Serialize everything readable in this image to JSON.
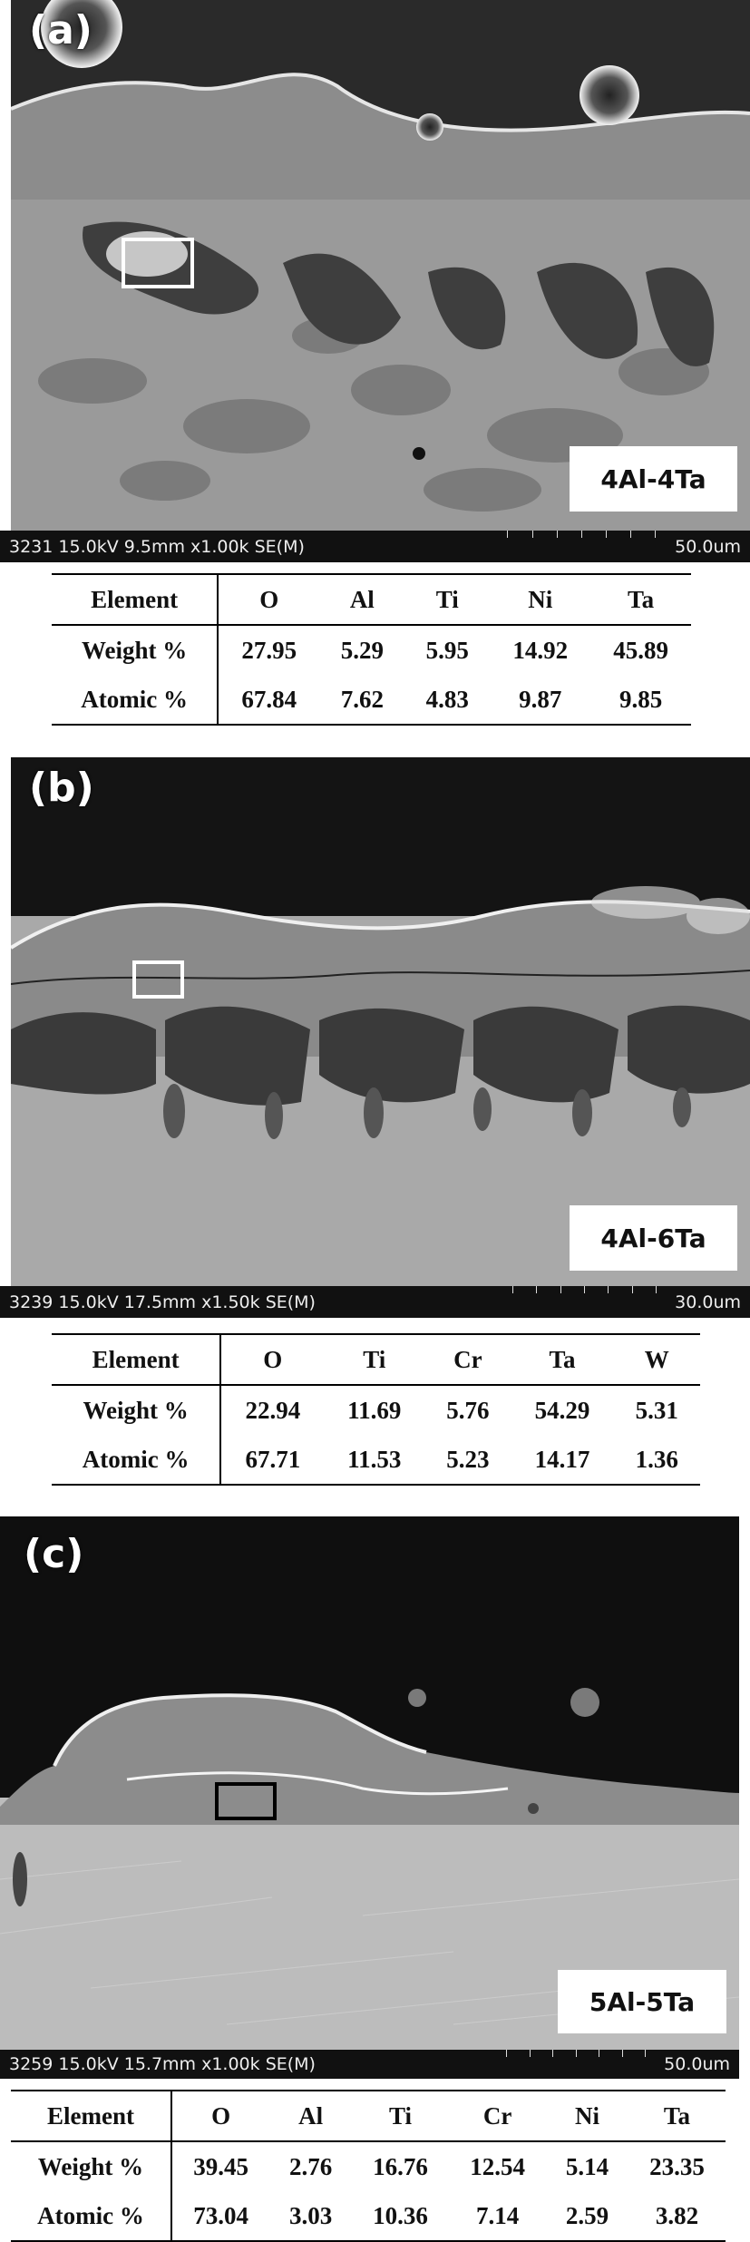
{
  "panels": [
    {
      "label": "(a)",
      "sample": "4Al-4Ta",
      "info": "3231 15.0kV 9.5mm x1.00k SE(M)",
      "scale": "50.0um",
      "marker_color": "#ffffff",
      "table": {
        "header": [
          "Element",
          "O",
          "Al",
          "Ti",
          "Ni",
          "Ta"
        ],
        "rows": [
          [
            "Weight %",
            "27.95",
            "5.29",
            "5.95",
            "14.92",
            "45.89"
          ],
          [
            "Atomic %",
            "67.84",
            "7.62",
            "4.83",
            "9.87",
            "9.85"
          ]
        ]
      }
    },
    {
      "label": "(b)",
      "sample": "4Al-6Ta",
      "info": "3239 15.0kV 17.5mm x1.50k SE(M)",
      "scale": "30.0um",
      "marker_color": "#ffffff",
      "table": {
        "header": [
          "Element",
          "O",
          "Ti",
          "Cr",
          "Ta",
          "W"
        ],
        "rows": [
          [
            "Weight %",
            "22.94",
            "11.69",
            "5.76",
            "54.29",
            "5.31"
          ],
          [
            "Atomic %",
            "67.71",
            "11.53",
            "5.23",
            "14.17",
            "1.36"
          ]
        ]
      }
    },
    {
      "label": "(c)",
      "sample": "5Al-5Ta",
      "info": "3259 15.0kV 15.7mm x1.00k SE(M)",
      "scale": "50.0um",
      "marker_color": "#000000",
      "table": {
        "header": [
          "Element",
          "O",
          "Al",
          "Ti",
          "Cr",
          "Ni",
          "Ta"
        ],
        "rows": [
          [
            "Weight %",
            "39.45",
            "2.76",
            "16.76",
            "12.54",
            "5.14",
            "23.35"
          ],
          [
            "Atomic %",
            "73.04",
            "3.03",
            "10.36",
            "7.14",
            "2.59",
            "3.82"
          ]
        ]
      }
    }
  ]
}
